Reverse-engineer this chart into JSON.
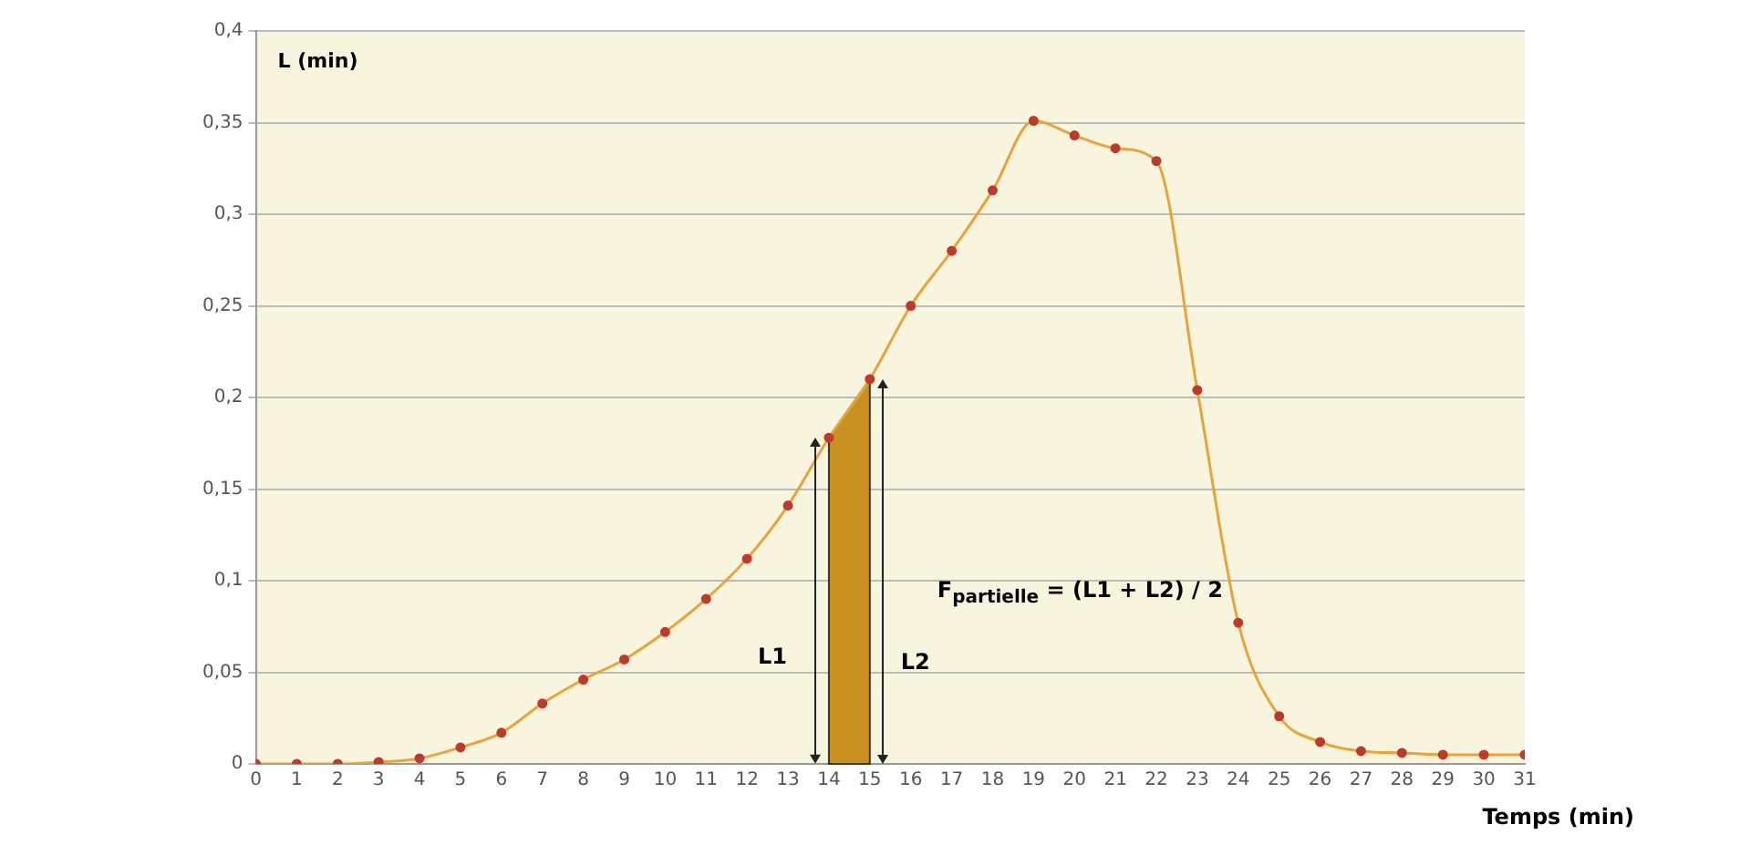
{
  "chart_data": {
    "type": "line",
    "ylabel": "L (min)",
    "xlabel": "Temps (min)",
    "x": [
      0,
      1,
      2,
      3,
      4,
      5,
      6,
      7,
      8,
      9,
      10,
      11,
      12,
      13,
      14,
      15,
      16,
      17,
      18,
      19,
      20,
      21,
      22,
      23,
      24,
      25,
      26,
      27,
      28,
      29,
      30,
      31
    ],
    "series": [
      {
        "color": "#e8a33a",
        "values": [
          0,
          0,
          0,
          0.001,
          0.003,
          0.009,
          0.017,
          0.033,
          0.046,
          0.057,
          0.072,
          0.09,
          0.112,
          0.141,
          0.178,
          0.21,
          0.25,
          0.28,
          0.313,
          0.351,
          0.343,
          0.336,
          0.329,
          0.204,
          0.077,
          0.026,
          0.012,
          0.007,
          0.006,
          0.005,
          0.005,
          0.005
        ]
      }
    ],
    "marker": "circle",
    "grid": "y",
    "xlim": [
      0,
      31
    ],
    "xticks": [
      0,
      1,
      2,
      3,
      4,
      5,
      6,
      7,
      8,
      9,
      10,
      11,
      12,
      13,
      14,
      15,
      16,
      17,
      18,
      19,
      20,
      21,
      22,
      23,
      24,
      25,
      26,
      27,
      28,
      29,
      30,
      31
    ],
    "ylim": [
      0,
      0.4
    ],
    "yticks": [
      0,
      {
        "value": 0.05,
        "label": "0,05"
      },
      {
        "value": 0.1,
        "label": "0,1"
      },
      {
        "value": 0.15,
        "label": "0,15"
      },
      {
        "value": 0.2,
        "label": "0,2"
      },
      {
        "value": 0.25,
        "label": "0,25"
      },
      {
        "value": 0.3,
        "label": "0,3"
      },
      {
        "value": 0.35,
        "label": "0,35"
      },
      {
        "value": 0.4,
        "label": "0,4"
      }
    ],
    "bands": [
      {
        "axis": "x",
        "from": 14,
        "to": 15,
        "color": "#c8901e"
      }
    ],
    "annotations": [
      "L1",
      "L2",
      "F$_{partielle}$ = (L1 + L2) / 2"
    ]
  }
}
